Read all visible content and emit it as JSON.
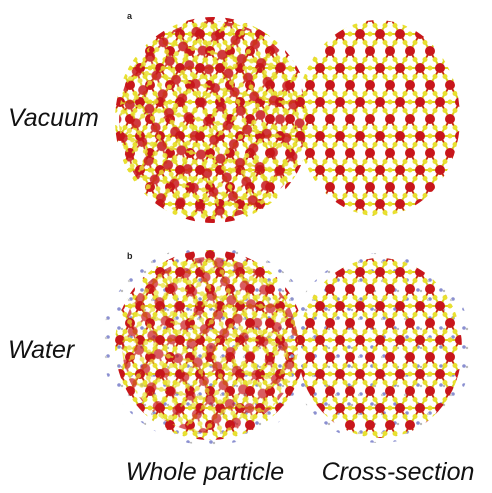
{
  "panels": [
    {
      "label": "a",
      "condition": "Vacuum"
    },
    {
      "label": "b",
      "condition": "Water"
    }
  ],
  "columns": [
    "Whole particle",
    "Cross-section"
  ]
}
